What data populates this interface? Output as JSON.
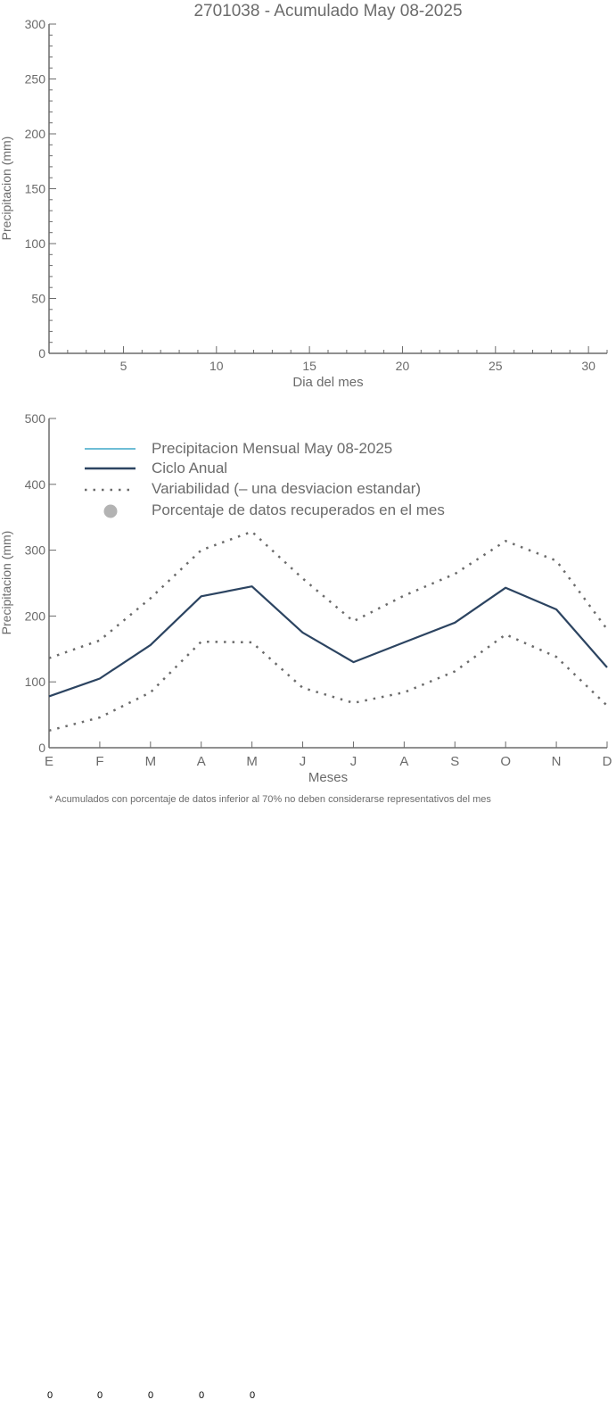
{
  "chart_data": [
    {
      "type": "line",
      "title": "2701038 - Acumulado May 08-2025",
      "xlabel": "Dia del mes",
      "ylabel": "Precipitacion (mm)",
      "xlim": [
        1,
        31
      ],
      "ylim": [
        0,
        300
      ],
      "x_ticks": [
        5,
        10,
        15,
        20,
        25,
        30
      ],
      "y_ticks": [
        0,
        50,
        100,
        150,
        200,
        250,
        300
      ],
      "series": []
    },
    {
      "type": "line",
      "xlabel": "Meses",
      "ylabel": "Precipitacion (mm)",
      "ylim": [
        0,
        500
      ],
      "y_ticks": [
        0,
        100,
        200,
        300,
        400,
        500
      ],
      "categories": [
        "E",
        "F",
        "M",
        "A",
        "M",
        "J",
        "J",
        "A",
        "S",
        "O",
        "N",
        "D"
      ],
      "legend": {
        "position": "top-left",
        "entries": [
          {
            "label": "Precipitacion Mensual May 08-2025",
            "style": "line",
            "color": "#3fa7c9"
          },
          {
            "label": "Ciclo Anual",
            "style": "line",
            "color": "#2c4461"
          },
          {
            "label": "Variabilidad (– una desviacion estandar)",
            "style": "dotted",
            "color": "#6b6b6b"
          },
          {
            "label": "Porcentaje de datos recuperados en el mes",
            "style": "dot",
            "color": "#b3b3b3"
          }
        ]
      },
      "series": [
        {
          "name": "Ciclo Anual",
          "color": "#2c4461",
          "style": "solid",
          "values": [
            78,
            105,
            156,
            230,
            245,
            175,
            130,
            160,
            190,
            243,
            210,
            122
          ]
        },
        {
          "name": "Variabilidad (– una desviacion estandar)",
          "color": "#6b6b6b",
          "style": "dotted",
          "values": [
            136,
            163,
            227,
            300,
            328,
            257,
            192,
            231,
            264,
            314,
            284,
            180
          ]
        },
        {
          "name": "Variabilidad (– una desviacion estandar)",
          "color": "#6b6b6b",
          "style": "dotted",
          "values": [
            26,
            46,
            84,
            161,
            160,
            91,
            68,
            84,
            116,
            172,
            138,
            64
          ]
        }
      ]
    }
  ],
  "footnote": "* Acumulados con porcentaje de datos inferior al 70% no deben considerarse representativos del mes",
  "bottom_values": [
    "0",
    "0",
    "0",
    "0",
    "0"
  ],
  "colors": {
    "axis": "#6b6b6b",
    "text": "#6b6b6b",
    "annual": "#2c4461",
    "monthly": "#3fa7c9",
    "recovered": "#b3b3b3"
  }
}
